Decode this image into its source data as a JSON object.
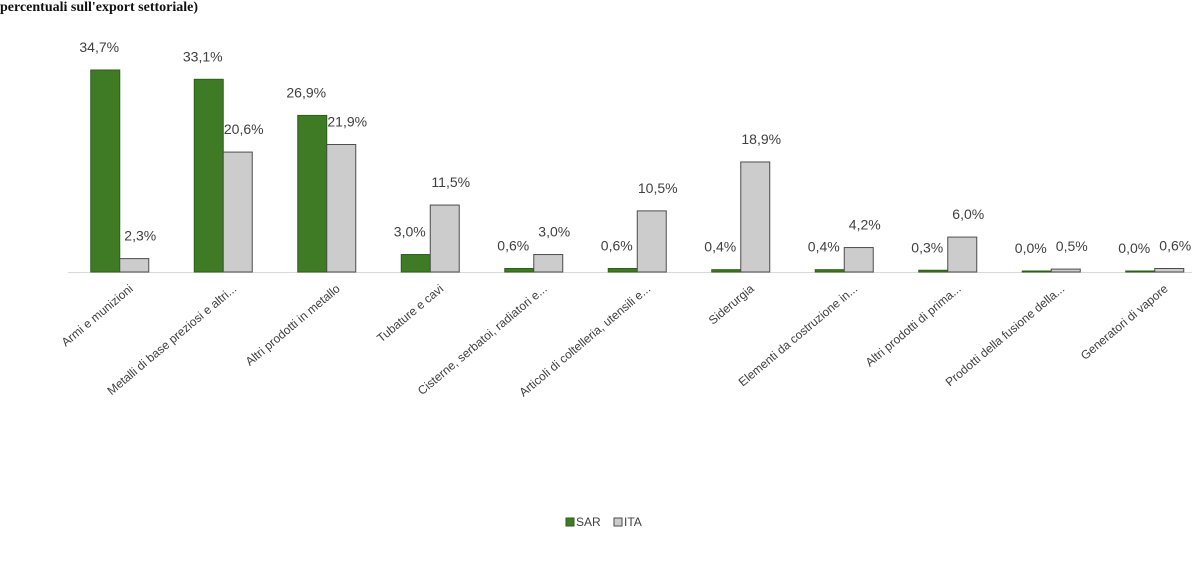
{
  "chart_data": {
    "type": "bar",
    "title": "percentuali sull'export settoriale)",
    "categories": [
      "Armi e munizioni",
      "Metalli di base preziosi e altri...",
      "Altri prodotti in metallo",
      "Tubature e cavi",
      "Cisterne, serbatoi, radiatori e...",
      "Articoli di coltelleria, utensili e...",
      "Siderurgia",
      "Elementi da costruzione in...",
      "Altri prodotti di prima...",
      "Prodotti della fusione della...",
      "Generatori di vapore"
    ],
    "series": [
      {
        "name": "SAR",
        "color": "#3f7a24",
        "values": [
          34.7,
          33.1,
          26.9,
          3.0,
          0.6,
          0.6,
          0.4,
          0.4,
          0.3,
          0.0,
          0.0
        ],
        "labels": [
          "34,7%",
          "33,1%",
          "26,9%",
          "3,0%",
          "0,6%",
          "0,6%",
          "0,4%",
          "0,4%",
          "0,3%",
          "0,0%",
          "0,0%"
        ]
      },
      {
        "name": "ITA",
        "color": "#cccccc",
        "values": [
          2.3,
          20.6,
          21.9,
          11.5,
          3.0,
          10.5,
          18.9,
          4.2,
          6.0,
          0.5,
          0.6
        ],
        "labels": [
          "2,3%",
          "20,6%",
          "21,9%",
          "11,5%",
          "3,0%",
          "10,5%",
          "18,9%",
          "4,2%",
          "6,0%",
          "0,5%",
          "0,6%"
        ]
      }
    ],
    "ylim": [
      0,
      36
    ],
    "grid": false,
    "legend": "bottom-center"
  }
}
